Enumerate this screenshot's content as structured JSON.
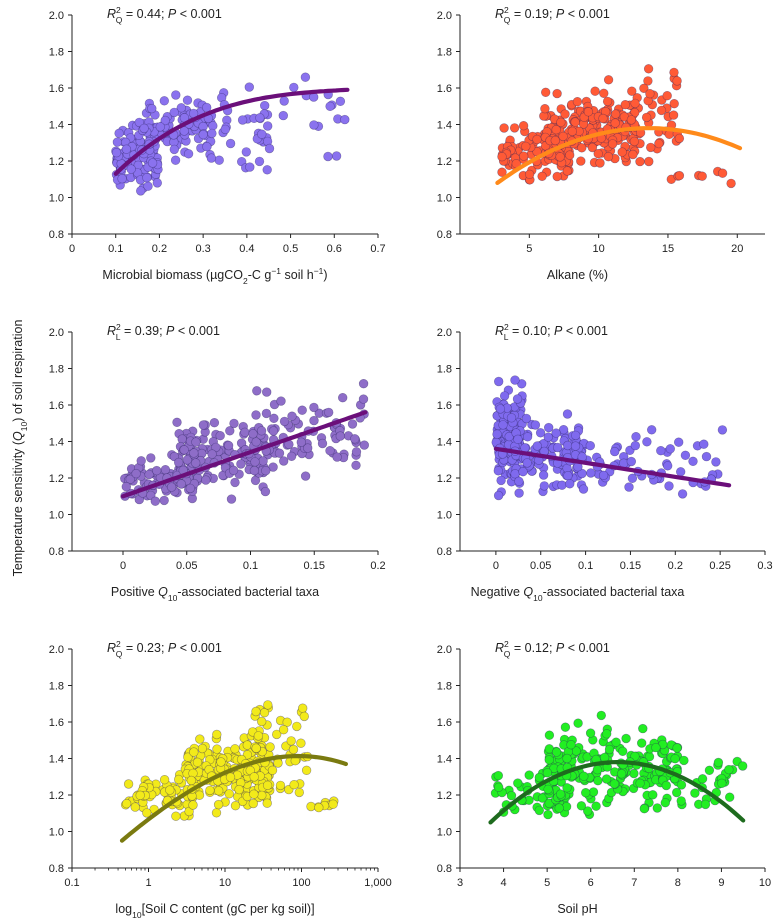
{
  "figure": {
    "y_axis_label": "Temperature sensitivity (Q10) of soil respiration"
  },
  "chart_data": [
    {
      "type": "scatter",
      "xlabel": "Microbial biomass (µgCO2-C g−1 soil h−1)",
      "annotation": "R2Q = 0.44; P < 0.001",
      "x_ticks": [
        "0",
        "0.1",
        "0.2",
        "0.3",
        "0.4",
        "0.5",
        "0.6",
        "0.7"
      ],
      "y_ticks": [
        "0.8",
        "1.0",
        "1.2",
        "1.4",
        "1.6",
        "1.8",
        "2.0"
      ],
      "xlim": [
        0,
        0.7
      ],
      "ylim": [
        0.8,
        2.0
      ],
      "xscale": "linear",
      "point_color": "#8a72ee",
      "trend_color": "#6b0f7a",
      "trend": {
        "form": "quadratic",
        "x_range": [
          0.1,
          0.63
        ],
        "points": [
          [
            0.1,
            1.13
          ],
          [
            0.3,
            1.45
          ],
          [
            0.45,
            1.55
          ],
          [
            0.63,
            1.59
          ]
        ]
      },
      "cloud": [
        {
          "x": [
            0.1,
            0.2
          ],
          "y": [
            1.0,
            1.45
          ],
          "n": 110
        },
        {
          "x": [
            0.15,
            0.32
          ],
          "y": [
            1.15,
            1.6
          ],
          "n": 110
        },
        {
          "x": [
            0.3,
            0.45
          ],
          "y": [
            1.05,
            1.65
          ],
          "n": 40
        },
        {
          "x": [
            0.4,
            0.63
          ],
          "y": [
            1.1,
            1.85
          ],
          "n": 20
        }
      ]
    },
    {
      "type": "scatter",
      "xlabel": "Alkane (%)",
      "annotation": "R2Q = 0.19; P < 0.001",
      "x_ticks": [
        "5",
        "10",
        "15",
        "20"
      ],
      "y_ticks": [
        "0.8",
        "1.0",
        "1.2",
        "1.4",
        "1.6",
        "1.8",
        "2.0"
      ],
      "xlim": [
        0,
        22
      ],
      "ylim": [
        0.8,
        2.0
      ],
      "xscale": "linear",
      "point_color": "#ff5a36",
      "trend_color": "#ff8a1a",
      "trend": {
        "form": "quadratic",
        "x_range": [
          2.7,
          20.2
        ],
        "points": [
          [
            2.7,
            1.08
          ],
          [
            13.5,
            1.38
          ],
          [
            20.2,
            1.27
          ]
        ]
      },
      "cloud": [
        {
          "x": [
            3,
            8
          ],
          "y": [
            1.05,
            1.45
          ],
          "n": 90
        },
        {
          "x": [
            6,
            13
          ],
          "y": [
            1.1,
            1.65
          ],
          "n": 170
        },
        {
          "x": [
            10,
            16
          ],
          "y": [
            1.05,
            1.8
          ],
          "n": 60
        },
        {
          "x": [
            15,
            20
          ],
          "y": [
            1.05,
            1.2
          ],
          "n": 8
        }
      ]
    },
    {
      "type": "scatter",
      "xlabel": "Positive Q10-associated bacterial taxa",
      "annotation": "R2L = 0.39; P < 0.001",
      "x_ticks": [
        "0",
        "0.05",
        "0.1",
        "0.15",
        "0.2"
      ],
      "y_ticks": [
        "0.8",
        "1.0",
        "1.2",
        "1.4",
        "1.6",
        "1.8",
        "2.0"
      ],
      "xlim": [
        -0.04,
        0.2
      ],
      "ylim": [
        0.8,
        2.0
      ],
      "xscale": "linear",
      "point_color": "#8e6dc8",
      "trend_color": "#6b0f7a",
      "trend": {
        "form": "linear",
        "x_range": [
          0.0,
          0.19
        ],
        "points": [
          [
            0.0,
            1.1
          ],
          [
            0.19,
            1.56
          ]
        ]
      },
      "cloud": [
        {
          "x": [
            0.0,
            0.06
          ],
          "y": [
            1.0,
            1.35
          ],
          "n": 90
        },
        {
          "x": [
            0.04,
            0.12
          ],
          "y": [
            1.05,
            1.6
          ],
          "n": 140
        },
        {
          "x": [
            0.1,
            0.19
          ],
          "y": [
            1.1,
            1.82
          ],
          "n": 80
        }
      ]
    },
    {
      "type": "scatter",
      "xlabel": "Negative Q10-associated bacterial taxa",
      "annotation": "R2L = 0.10; P < 0.001",
      "x_ticks": [
        "0",
        "0.05",
        "0.1",
        "0.15",
        "0.2",
        "0.25",
        "0.3"
      ],
      "y_ticks": [
        "0.8",
        "1.0",
        "1.2",
        "1.4",
        "1.6",
        "1.8",
        "2.0"
      ],
      "xlim": [
        -0.04,
        0.3
      ],
      "ylim": [
        0.8,
        2.0
      ],
      "xscale": "linear",
      "point_color": "#7f6aee",
      "trend_color": "#6b0f7a",
      "trend": {
        "form": "linear",
        "x_range": [
          0.0,
          0.26
        ],
        "points": [
          [
            0.0,
            1.36
          ],
          [
            0.26,
            1.16
          ]
        ]
      },
      "cloud": [
        {
          "x": [
            0.0,
            0.03
          ],
          "y": [
            1.03,
            1.83
          ],
          "n": 140
        },
        {
          "x": [
            0.02,
            0.1
          ],
          "y": [
            1.05,
            1.6
          ],
          "n": 110
        },
        {
          "x": [
            0.08,
            0.26
          ],
          "y": [
            1.05,
            1.5
          ],
          "n": 70
        }
      ]
    },
    {
      "type": "scatter",
      "xlabel": "log10[Soil C content (gC per kg soil)]",
      "annotation": "R2Q = 0.23; P < 0.001",
      "x_ticks": [
        "0.1",
        "1",
        "10",
        "100",
        "1,000"
      ],
      "y_ticks": [
        "0.8",
        "1.0",
        "1.2",
        "1.4",
        "1.6",
        "1.8",
        "2.0"
      ],
      "xlim": [
        0.1,
        1000
      ],
      "ylim": [
        0.8,
        2.0
      ],
      "xscale": "log",
      "point_color": "#f2ea1a",
      "trend_color": "#7a7a10",
      "trend": {
        "form": "quadratic",
        "x_range": [
          0.45,
          380
        ],
        "points": [
          [
            0.45,
            0.95
          ],
          [
            5,
            1.26
          ],
          [
            60,
            1.41
          ],
          [
            380,
            1.37
          ]
        ]
      },
      "cloud": [
        {
          "x": [
            0.5,
            4
          ],
          "y": [
            1.03,
            1.35
          ],
          "n": 60
        },
        {
          "x": [
            3,
            40
          ],
          "y": [
            1.05,
            1.6
          ],
          "n": 200
        },
        {
          "x": [
            20,
            120
          ],
          "y": [
            1.1,
            1.8
          ],
          "n": 50
        },
        {
          "x": [
            100,
            400
          ],
          "y": [
            1.1,
            1.2
          ],
          "n": 8
        }
      ]
    },
    {
      "type": "scatter",
      "xlabel": "Soil pH",
      "annotation": "R2Q = 0.12; P < 0.001",
      "x_ticks": [
        "3",
        "4",
        "5",
        "6",
        "7",
        "8",
        "9",
        "10"
      ],
      "y_ticks": [
        "0.8",
        "1.0",
        "1.2",
        "1.4",
        "1.6",
        "1.8",
        "2.0"
      ],
      "xlim": [
        3,
        10
      ],
      "ylim": [
        0.8,
        2.0
      ],
      "xscale": "linear",
      "point_color": "#22ee22",
      "trend_color": "#1e6b1e",
      "trend": {
        "form": "quadratic",
        "x_range": [
          3.7,
          9.5
        ],
        "points": [
          [
            3.7,
            1.05
          ],
          [
            6.6,
            1.38
          ],
          [
            9.5,
            1.06
          ]
        ]
      },
      "cloud": [
        {
          "x": [
            3.8,
            5.5
          ],
          "y": [
            1.03,
            1.35
          ],
          "n": 50
        },
        {
          "x": [
            5.0,
            8.0
          ],
          "y": [
            1.05,
            1.65
          ],
          "n": 220
        },
        {
          "x": [
            7.5,
            9.5
          ],
          "y": [
            1.05,
            1.45
          ],
          "n": 40
        }
      ]
    }
  ]
}
